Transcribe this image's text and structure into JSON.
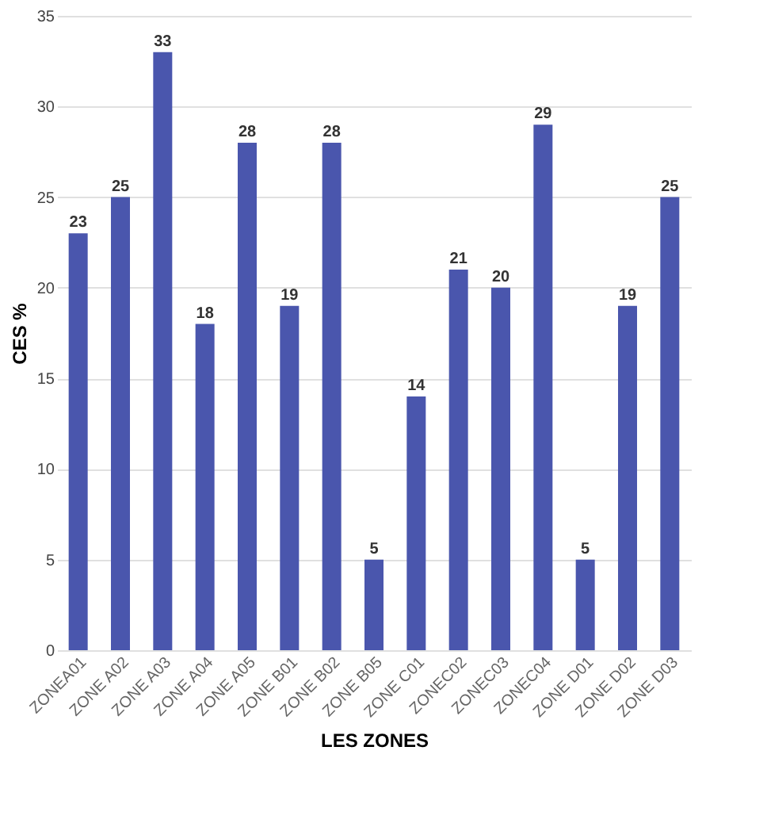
{
  "chart_data": {
    "type": "bar",
    "xlabel": "LES ZONES",
    "ylabel": "CES %",
    "categories": [
      "ZONEA01",
      "ZONE A02",
      "ZONE A03",
      "ZONE A04",
      "ZONE A05",
      "ZONE B01",
      "ZONE B02",
      "ZONE B05",
      "ZONE C01",
      "ZONEC02",
      "ZONEC03",
      "ZONEC04",
      "ZONE D01",
      "ZONE D02",
      "ZONE D03"
    ],
    "values": [
      23,
      25,
      33,
      18,
      28,
      19,
      28,
      5,
      14,
      21,
      20,
      29,
      5,
      19,
      25
    ],
    "color": "#4a56ad",
    "ylim": [
      0,
      35
    ],
    "yticks": [
      0,
      5,
      10,
      15,
      20,
      25,
      30,
      35
    ],
    "grid": "y",
    "data_labels": true
  }
}
